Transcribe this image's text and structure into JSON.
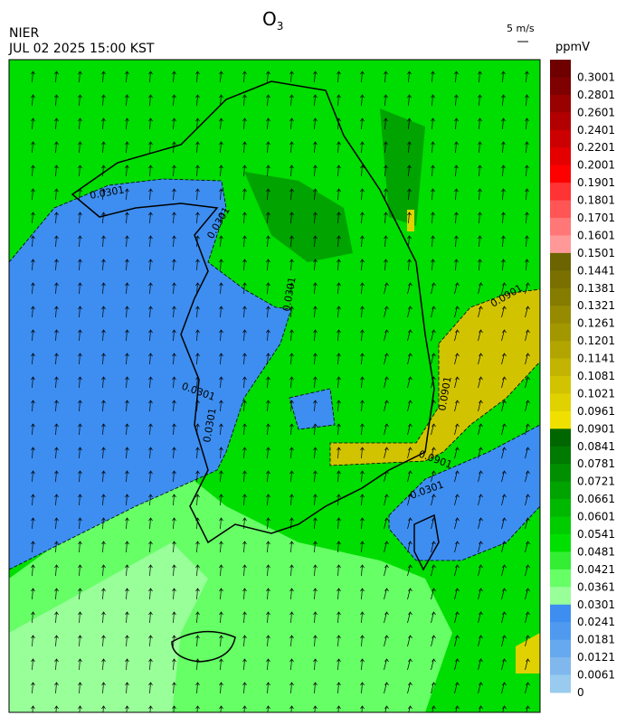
{
  "header": {
    "title": {
      "main": "O",
      "sub": "3"
    },
    "source": "NIER",
    "datetime": "JUL 02 2025 15:00 KST",
    "vector_scale": "5 m/s"
  },
  "colorbar": {
    "unit": "ppmV",
    "labels": [
      "0.3001",
      "0.2801",
      "0.2601",
      "0.2401",
      "0.2201",
      "0.2001",
      "0.1901",
      "0.1801",
      "0.1701",
      "0.1601",
      "0.1501",
      "0.1441",
      "0.1381",
      "0.1321",
      "0.1261",
      "0.1201",
      "0.1141",
      "0.1081",
      "0.1021",
      "0.0961",
      "0.0901",
      "0.0841",
      "0.0781",
      "0.0721",
      "0.0661",
      "0.0601",
      "0.0541",
      "0.0481",
      "0.0421",
      "0.0361",
      "0.0301",
      "0.0241",
      "0.0181",
      "0.0121",
      "0.0061",
      "0"
    ],
    "colors": [
      "#6e0000",
      "#7f0000",
      "#990000",
      "#b20000",
      "#cc0000",
      "#e50000",
      "#ff0000",
      "#ff3333",
      "#ff5555",
      "#ff7777",
      "#ff9999",
      "#6b6400",
      "#7a7000",
      "#857c00",
      "#958a00",
      "#a39700",
      "#b2a500",
      "#c2b400",
      "#d1c300",
      "#e0d200",
      "#f0e000",
      "#006600",
      "#007a00",
      "#008f00",
      "#00a300",
      "#00b800",
      "#00cc00",
      "#00e000",
      "#33ee33",
      "#66ff66",
      "#99ff99",
      "#3d8ef0",
      "#4f9aee",
      "#66a9ee",
      "#80b8ee",
      "#99cbee"
    ]
  },
  "contour_labels": [
    "0.0301",
    "0.0301",
    "0.0301",
    "0.0301",
    "0.0301",
    "0.0901",
    "0.0901",
    "0.0901",
    "0.0301"
  ]
}
